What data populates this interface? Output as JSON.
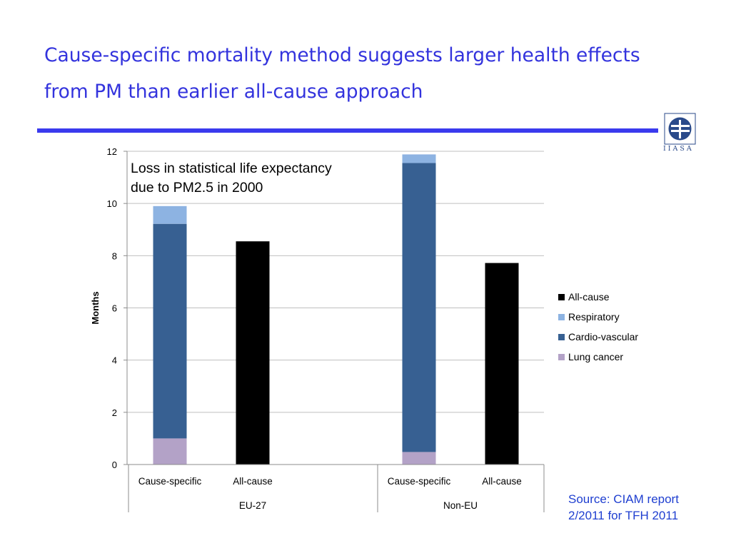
{
  "slide": {
    "title_lines": [
      "Cause-specific mortality method suggests larger health effects",
      "from PM than earlier all-cause approach"
    ],
    "logo_text": "IIASA",
    "source_lines": [
      "Source: CIAM report",
      "2/2011 for TFH 2011"
    ]
  },
  "colors": {
    "title": "#3333dd",
    "rule": "#3a3aee",
    "source": "#1f3fd0",
    "all_cause": "#000000",
    "respiratory": "#8db3e2",
    "cardio_vascular": "#376092",
    "lung_cancer": "#b3a2c7"
  },
  "chart_data": {
    "type": "bar",
    "stacked": true,
    "annotation_lines": [
      "Loss in statistical life expectancy",
      "due to PM2.5 in 2000"
    ],
    "ylabel": "Months",
    "ylim": [
      0,
      12
    ],
    "yticks": [
      0,
      2,
      4,
      6,
      8,
      10,
      12
    ],
    "grid": true,
    "legend_position": "right",
    "groups": [
      {
        "name": "EU-27",
        "categories": [
          "Cause-specific",
          "All-cause"
        ],
        "bars": [
          {
            "category": "Cause-specific",
            "lung_cancer": 1.0,
            "cardio_vascular": 8.22,
            "respiratory": 0.68,
            "all_cause": 0
          },
          {
            "category": "All-cause",
            "lung_cancer": 0,
            "cardio_vascular": 0,
            "respiratory": 0,
            "all_cause": 8.55
          }
        ]
      },
      {
        "name": "Non-EU",
        "categories": [
          "Cause-specific",
          "All-cause"
        ],
        "bars": [
          {
            "category": "Cause-specific",
            "lung_cancer": 0.48,
            "cardio_vascular": 11.07,
            "respiratory": 0.33,
            "all_cause": 0
          },
          {
            "category": "All-cause",
            "lung_cancer": 0,
            "cardio_vascular": 0,
            "respiratory": 0,
            "all_cause": 7.72
          }
        ]
      }
    ],
    "series": [
      {
        "key": "all_cause",
        "name": "All-cause",
        "color": "#000000"
      },
      {
        "key": "respiratory",
        "name": "Respiratory",
        "color": "#8db3e2"
      },
      {
        "key": "cardio_vascular",
        "name": "Cardio-vascular",
        "color": "#376092"
      },
      {
        "key": "lung_cancer",
        "name": "Lung cancer",
        "color": "#b3a2c7"
      }
    ],
    "stack_order": [
      "lung_cancer",
      "cardio_vascular",
      "respiratory",
      "all_cause"
    ]
  }
}
